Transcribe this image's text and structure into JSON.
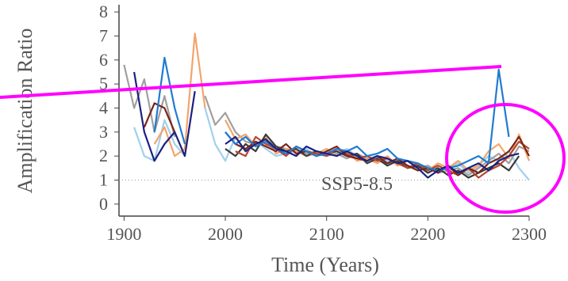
{
  "chart_data": {
    "type": "line",
    "xlabel": "Time (Years)",
    "ylabel": "Amplification Ratio",
    "annotation": "SSP5-8.5",
    "xlim": [
      1895,
      2300
    ],
    "ylim": [
      -0.5,
      8.3
    ],
    "xticks": [
      1900,
      2000,
      2100,
      2200,
      2300
    ],
    "yticks": [
      0,
      1,
      2,
      3,
      4,
      5,
      6,
      7,
      8
    ],
    "hline": 1,
    "x": [
      1900,
      1910,
      1920,
      1930,
      1940,
      1950,
      1960,
      1970,
      1980,
      1990,
      2000,
      2010,
      2020,
      2030,
      2040,
      2050,
      2060,
      2070,
      2080,
      2090,
      2100,
      2110,
      2120,
      2130,
      2140,
      2150,
      2160,
      2170,
      2180,
      2190,
      2200,
      2210,
      2220,
      2230,
      2240,
      2250,
      2260,
      2270,
      2280,
      2290,
      2300
    ],
    "series": [
      {
        "color": "#9fd0ee",
        "values": [
          null,
          3.2,
          2.0,
          1.8,
          3.5,
          2.5,
          2.0,
          null,
          4.0,
          2.5,
          1.8,
          2.8,
          2.2,
          2.6,
          2.3,
          2.0,
          2.1,
          2.2,
          2.3,
          2.0,
          2.2,
          2.1,
          2.3,
          2.0,
          1.9,
          2.0,
          1.8,
          1.7,
          1.6,
          1.5,
          1.6,
          1.4,
          1.5,
          1.7,
          1.3,
          1.6,
          2.0,
          1.8,
          2.2,
          1.5,
          1.0
        ]
      },
      {
        "color": "#a0a0a0",
        "values": [
          5.8,
          4.0,
          5.2,
          3.0,
          4.5,
          2.8,
          null,
          null,
          4.5,
          3.3,
          3.8,
          3.0,
          2.6,
          2.5,
          2.7,
          2.4,
          2.3,
          2.2,
          2.1,
          2.2,
          2.0,
          2.1,
          1.9,
          2.1,
          1.9,
          1.8,
          1.7,
          1.8,
          1.6,
          1.5,
          1.6,
          1.3,
          1.4,
          1.5,
          1.2,
          1.5,
          1.8,
          2.1,
          1.7,
          2.4,
          2.2
        ]
      },
      {
        "color": "#f4a46a",
        "values": [
          null,
          null,
          null,
          2.5,
          3.2,
          2.0,
          2.3,
          7.1,
          4.0,
          null,
          3.5,
          2.7,
          2.9,
          2.4,
          2.8,
          2.1,
          2.3,
          2.2,
          2.0,
          2.1,
          2.3,
          2.0,
          2.2,
          1.8,
          1.9,
          1.7,
          2.0,
          1.6,
          1.8,
          1.6,
          1.4,
          1.7,
          1.5,
          1.8,
          1.4,
          1.6,
          2.2,
          2.5,
          1.9,
          2.9,
          1.8
        ]
      },
      {
        "color": "#3a3a3a",
        "values": [
          null,
          null,
          null,
          null,
          null,
          null,
          null,
          null,
          null,
          null,
          2.3,
          2.0,
          2.5,
          2.2,
          2.9,
          2.4,
          2.2,
          2.3,
          2.0,
          2.2,
          2.1,
          2.2,
          2.0,
          2.1,
          1.7,
          1.9,
          1.6,
          1.8,
          1.5,
          1.6,
          1.3,
          1.5,
          1.2,
          1.4,
          1.1,
          1.3,
          1.5,
          1.7,
          1.4,
          2.0,
          null
        ]
      },
      {
        "color": "#b5462e",
        "values": [
          null,
          null,
          null,
          null,
          null,
          null,
          null,
          null,
          null,
          null,
          null,
          2.2,
          2.0,
          2.8,
          2.5,
          2.3,
          2.0,
          2.4,
          2.2,
          2.1,
          2.0,
          2.3,
          2.1,
          1.9,
          2.0,
          1.8,
          1.9,
          1.7,
          1.5,
          1.7,
          1.4,
          1.6,
          1.4,
          1.2,
          1.5,
          1.1,
          1.4,
          1.6,
          2.0,
          2.6,
          2.3
        ]
      },
      {
        "color": "#7a2418",
        "values": [
          null,
          null,
          3.2,
          4.2,
          4.0,
          3.0,
          null,
          null,
          null,
          null,
          3.0,
          2.5,
          2.3,
          2.6,
          2.4,
          2.2,
          2.5,
          2.1,
          2.2,
          2.0,
          2.2,
          2.4,
          2.0,
          1.9,
          1.8,
          2.0,
          1.7,
          1.9,
          1.6,
          1.4,
          1.5,
          1.3,
          1.6,
          1.2,
          1.5,
          1.3,
          1.7,
          1.9,
          2.2,
          2.8,
          2.0
        ]
      },
      {
        "color": "#1f7bd0",
        "values": [
          null,
          null,
          null,
          3.0,
          6.1,
          4.0,
          2.5,
          null,
          null,
          null,
          3.0,
          2.5,
          2.8,
          2.4,
          2.6,
          2.3,
          2.1,
          2.4,
          2.2,
          2.0,
          2.1,
          2.3,
          2.2,
          2.4,
          2.0,
          2.1,
          2.3,
          1.9,
          1.8,
          1.7,
          1.5,
          1.4,
          1.5,
          1.6,
          1.8,
          2.0,
          1.7,
          5.6,
          2.8,
          null,
          null
        ]
      },
      {
        "color": "#1b2180",
        "values": [
          null,
          5.5,
          3.0,
          1.8,
          2.5,
          3.0,
          2.0,
          4.7,
          null,
          null,
          2.5,
          2.8,
          2.2,
          2.5,
          2.7,
          2.3,
          2.2,
          2.0,
          2.4,
          2.2,
          2.1,
          2.0,
          2.2,
          2.0,
          1.8,
          2.0,
          1.9,
          1.7,
          1.8,
          1.5,
          1.1,
          1.4,
          1.6,
          1.3,
          1.5,
          1.7,
          1.4,
          1.8,
          2.0,
          2.1,
          null
        ]
      }
    ]
  }
}
